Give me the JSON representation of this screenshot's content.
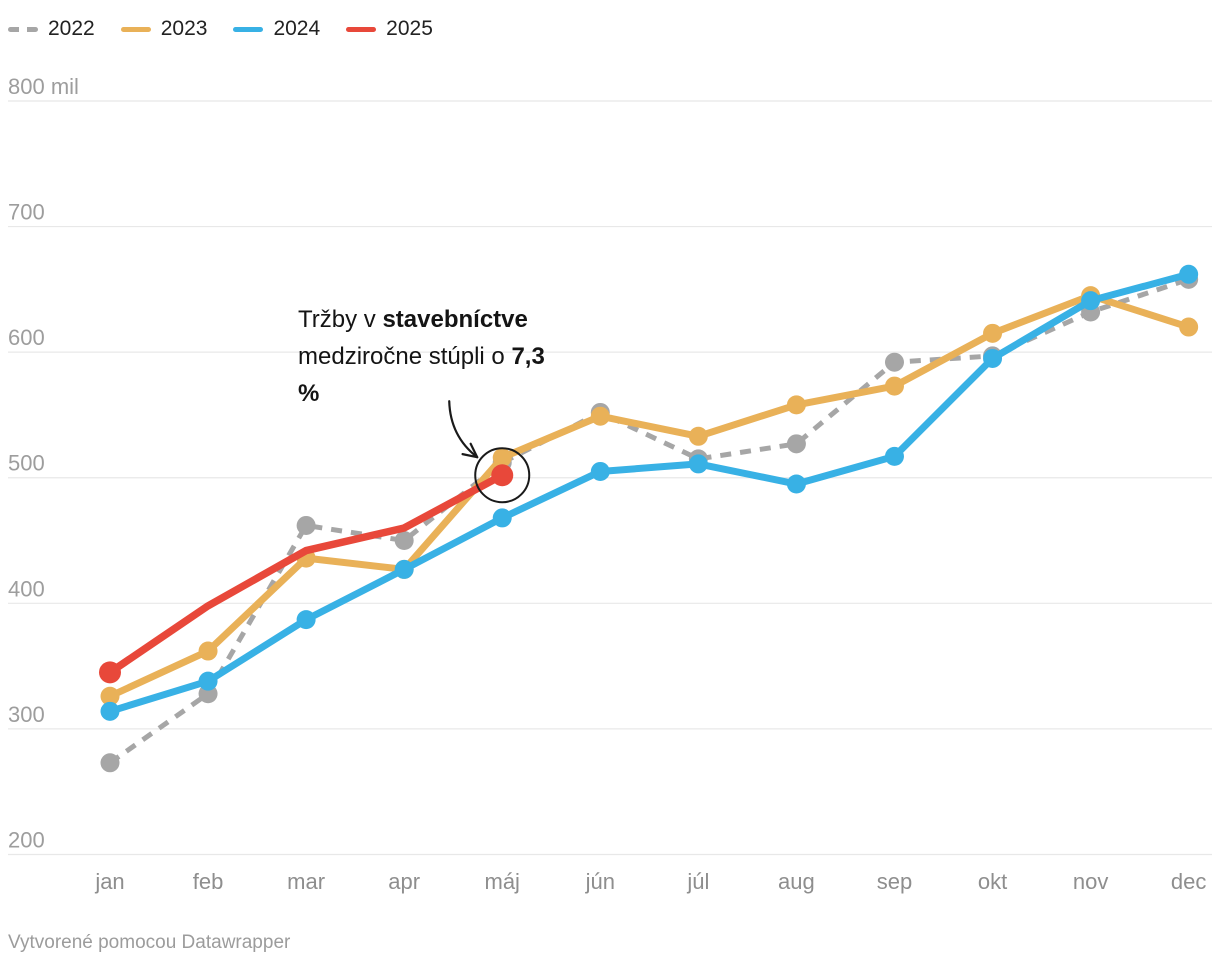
{
  "chart_data": {
    "type": "line",
    "title": "",
    "categories": [
      "jan",
      "feb",
      "mar",
      "apr",
      "máj",
      "jún",
      "júl",
      "aug",
      "sep",
      "okt",
      "nov",
      "dec"
    ],
    "ylim": [
      200,
      800
    ],
    "yticks": [
      800,
      700,
      600,
      500,
      400,
      300,
      200
    ],
    "ytick_labels": [
      "800 mil",
      "700",
      "600",
      "500",
      "400",
      "300",
      "200"
    ],
    "grid": true,
    "legend_position": "top-left",
    "series": [
      {
        "name": "2022",
        "color": "#a6a6a6",
        "style": "dashed",
        "width": 5,
        "markers": "all",
        "marker_r": 9.5,
        "values": [
          273,
          328,
          462,
          450,
          512,
          552,
          515,
          527,
          592,
          597,
          632,
          658
        ]
      },
      {
        "name": "2023",
        "color": "#e9b158",
        "style": "solid",
        "width": 7,
        "markers": "all",
        "marker_r": 9.5,
        "values": [
          326,
          362,
          436,
          427,
          516,
          549,
          533,
          558,
          573,
          615,
          645,
          620
        ]
      },
      {
        "name": "2024",
        "color": "#38b1e5",
        "style": "solid",
        "width": 7,
        "markers": "all",
        "marker_r": 9.5,
        "values": [
          314,
          338,
          387,
          427,
          468,
          505,
          511,
          495,
          517,
          595,
          641,
          662
        ]
      },
      {
        "name": "2025",
        "color": "#e8483a",
        "style": "solid",
        "width": 7.5,
        "markers": "ends",
        "marker_r": 11,
        "values": [
          345,
          398,
          442,
          460,
          502
        ]
      }
    ],
    "annotation": {
      "lines": [
        [
          {
            "t": "Tržby v ",
            "b": false
          },
          {
            "t": "stavebníctve",
            "b": true
          }
        ],
        [
          {
            "t": "medziročne stúpli o ",
            "b": false
          },
          {
            "t": "7,3",
            "b": true
          }
        ],
        [
          {
            "t": "%",
            "b": true
          }
        ]
      ],
      "target_series": "2025",
      "target_month": "máj"
    }
  },
  "footer": {
    "credit": "Vytvorené pomocou Datawrapper"
  }
}
